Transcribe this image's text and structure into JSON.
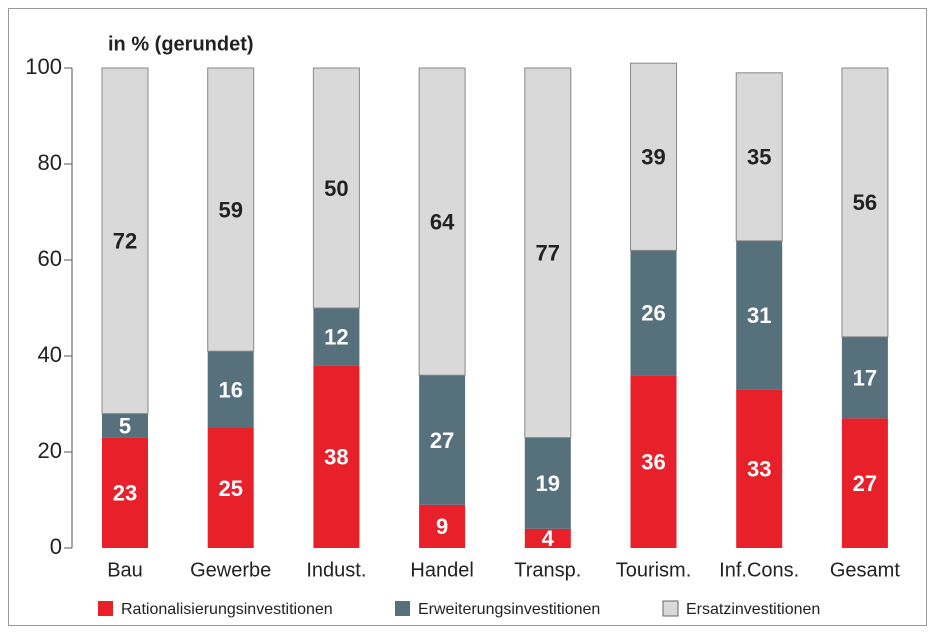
{
  "chart_data": {
    "type": "stacked-bar",
    "title": "in % (gerundet)",
    "categories": [
      "Bau",
      "Gewerbe",
      "Indust.",
      "Handel",
      "Transp.",
      "Tourism.",
      "Inf.Cons.",
      "Gesamt"
    ],
    "series": [
      {
        "name": "Rationalisierungsinvestitionen",
        "color": "#e8202a",
        "label_color": "#ffffff",
        "values": [
          23,
          25,
          38,
          9,
          4,
          36,
          33,
          27
        ]
      },
      {
        "name": "Erweiterungsinvestitionen",
        "color": "#56707c",
        "label_color": "#ffffff",
        "values": [
          5,
          16,
          12,
          27,
          19,
          26,
          31,
          17
        ]
      },
      {
        "name": "Ersatzinvestitionen",
        "color": "#d9d9d9",
        "label_color": "#222222",
        "values": [
          72,
          59,
          50,
          64,
          77,
          39,
          35,
          56
        ]
      }
    ],
    "ylim": [
      0,
      100
    ],
    "yticks": [
      0,
      20,
      40,
      60,
      80,
      100
    ],
    "grid": false,
    "legend": "bottom"
  }
}
